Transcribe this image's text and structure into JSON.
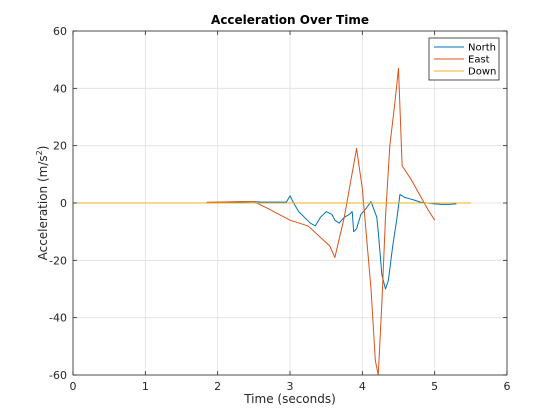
{
  "chart_data": {
    "type": "line",
    "title": "Acceleration Over Time",
    "xlabel": "Time (seconds)",
    "ylabel_base": "Acceleration (m/s",
    "ylabel_sup": "2",
    "ylabel_end": ")",
    "xlim": [
      0,
      6
    ],
    "ylim": [
      -60,
      60
    ],
    "xticks": [
      "0",
      "1",
      "2",
      "3",
      "4",
      "5",
      "6"
    ],
    "yticks": [
      "-60",
      "-40",
      "-20",
      "0",
      "20",
      "40",
      "60"
    ],
    "grid": true,
    "legend": {
      "placement": "top-right"
    },
    "series": [
      {
        "name": "North",
        "color": "#0072BD",
        "x": [
          1.85,
          2.3,
          2.5,
          2.6,
          2.8,
          2.95,
          3.0,
          3.05,
          3.12,
          3.2,
          3.28,
          3.35,
          3.42,
          3.5,
          3.58,
          3.62,
          3.68,
          3.75,
          3.82,
          3.86,
          3.88,
          3.92,
          3.98,
          4.05,
          4.12,
          4.2,
          4.22,
          4.27,
          4.32,
          4.36,
          4.42,
          4.48,
          4.52,
          4.58,
          4.65,
          4.72,
          4.8,
          4.9,
          5.0,
          5.1,
          5.2,
          5.3
        ],
        "y": [
          0.2,
          0.3,
          0.5,
          0.3,
          0.3,
          0.3,
          2.5,
          0,
          -3,
          -5,
          -7,
          -8,
          -5,
          -3,
          -4,
          -6,
          -7,
          -5,
          -4,
          -3,
          -10,
          -9,
          -4,
          -2,
          0.5,
          -5,
          -10,
          -25,
          -30,
          -27,
          -15,
          -5,
          3,
          2,
          1.5,
          1,
          0.3,
          0,
          -0.3,
          -0.5,
          -0.5,
          -0.3
        ]
      },
      {
        "name": "East",
        "color": "#D95319",
        "x": [
          1.85,
          2.3,
          2.5,
          2.7,
          3.0,
          3.25,
          3.55,
          3.62,
          3.75,
          3.92,
          4.0,
          4.12,
          4.18,
          4.22,
          4.27,
          4.32,
          4.38,
          4.45,
          4.5,
          4.55,
          4.68,
          4.9,
          5.0
        ],
        "y": [
          0.2,
          0.5,
          0.5,
          -2,
          -6,
          -8,
          -15,
          -19,
          -5,
          19,
          5,
          -30,
          -55,
          -60,
          -35,
          -5,
          20,
          35,
          47,
          13,
          8,
          -2,
          -6
        ]
      },
      {
        "name": "Down",
        "color": "#EDB120",
        "x": [
          0,
          0.5,
          1.0,
          1.5,
          2.0,
          2.5,
          3.0,
          3.5,
          4.0,
          4.5,
          5.0,
          5.5
        ],
        "y": [
          0,
          0,
          0,
          0,
          0,
          0,
          0,
          0,
          0,
          0,
          0,
          0
        ]
      }
    ]
  }
}
